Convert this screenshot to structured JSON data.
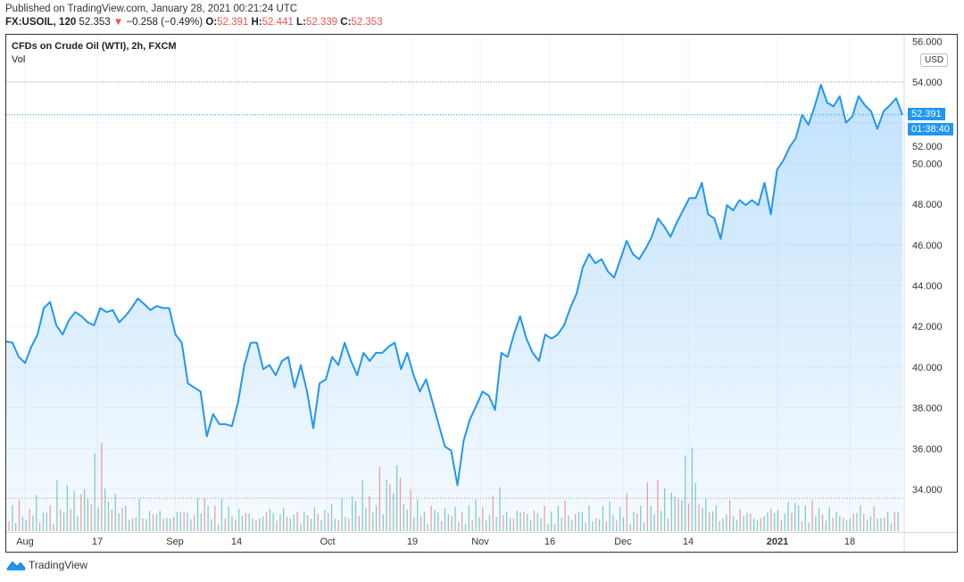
{
  "header": {
    "published": "Published on TradingView.com, January 28, 2021 00:21:24 UTC",
    "symbol": "FX:USOIL, 120",
    "last": "52.353",
    "change": "−0.258 (−0.49%)",
    "o_label": "O:",
    "o": "52.391",
    "h_label": "H:",
    "h": "52.441",
    "l_label": "L:",
    "l": "52.339",
    "c_label": "C:",
    "c": "52.353"
  },
  "legend": {
    "title": "CFDs on Crude Oil (WTI), 2h, FXCM",
    "vol": "Vol"
  },
  "axis": {
    "currency": "USD",
    "price_tag": "52.391",
    "countdown": "01:38:40"
  },
  "footer": {
    "brand": "TradingView"
  },
  "colors": {
    "line": "#2196f3",
    "vol_up": "#26a69a",
    "vol_down": "#ef5350",
    "down_arrow": "#ef5350"
  },
  "chart_data": {
    "type": "area",
    "title": "CFDs on Crude Oil (WTI), 2h, FXCM",
    "x_range": [
      "Jul 31 2020",
      "Jan 27 2021"
    ],
    "x_ticks": [
      "Aug",
      "17",
      "Sep",
      "14",
      "Oct",
      "19",
      "Nov",
      "16",
      "Dec",
      "14",
      "2021",
      "18"
    ],
    "y_ticks": [
      "34.000",
      "36.000",
      "38.000",
      "40.000",
      "42.000",
      "44.000",
      "46.000",
      "48.000",
      "50.000",
      "52.000",
      "54.000",
      "56.000"
    ],
    "ylim": [
      33,
      56.2
    ],
    "grid": true,
    "reference_lines": [
      54.0,
      52.391
    ],
    "series": [
      {
        "values": [
          41.26,
          41.2,
          40.5,
          40.2,
          41.0,
          41.6,
          42.9,
          43.2,
          42.05,
          41.6,
          42.3,
          42.7,
          42.5,
          42.2,
          42.05,
          42.9,
          42.7,
          42.8,
          42.2,
          42.5,
          42.9,
          43.37,
          43.1,
          42.8,
          43.0,
          42.9,
          42.9,
          41.6,
          41.2,
          39.2,
          39.0,
          38.8,
          36.6,
          37.7,
          37.2,
          37.2,
          37.1,
          38.3,
          40.1,
          41.2,
          41.2,
          39.9,
          40.1,
          39.6,
          40.3,
          40.5,
          39.0,
          40.1,
          38.8,
          37.0,
          39.2,
          39.4,
          40.5,
          40.1,
          41.2,
          40.3,
          39.6,
          40.7,
          40.3,
          40.7,
          40.7,
          41.0,
          41.2,
          39.9,
          40.7,
          39.6,
          38.8,
          39.4,
          38.3,
          37.2,
          36.1,
          35.9,
          34.2,
          36.4,
          37.45,
          38.1,
          38.8,
          38.6,
          37.9,
          40.7,
          40.5,
          41.6,
          42.5,
          41.4,
          40.7,
          40.3,
          41.6,
          41.4,
          41.6,
          42.05,
          42.9,
          43.6,
          44.9,
          45.55,
          45.1,
          45.3,
          44.7,
          44.4,
          45.3,
          46.2,
          45.55,
          45.3,
          45.8,
          46.4,
          47.3,
          46.9,
          46.4,
          47.1,
          47.7,
          48.3,
          48.3,
          49.05,
          47.5,
          47.3,
          46.3,
          47.95,
          47.7,
          48.2,
          47.95,
          48.2,
          47.95,
          49.05,
          47.5,
          49.7,
          50.15,
          50.8,
          51.25,
          52.4,
          51.9,
          52.8,
          53.87,
          52.99,
          52.8,
          53.3,
          52.0,
          52.3,
          53.3,
          52.86,
          52.56,
          51.7,
          52.56,
          52.86,
          53.2,
          52.39
        ]
      }
    ],
    "volume": [
      3,
      4,
      2,
      5,
      3,
      2,
      4,
      3,
      6,
      2,
      3,
      5,
      4,
      2,
      8,
      5,
      3,
      9,
      4,
      7,
      3,
      6,
      10,
      5,
      8,
      12,
      6,
      14,
      9,
      5,
      4,
      7,
      3,
      5,
      4,
      3,
      2,
      4,
      5,
      3,
      2,
      4,
      3,
      3,
      4,
      2,
      3,
      2,
      4,
      3,
      5,
      3,
      4,
      2,
      3,
      6,
      3,
      7,
      4,
      3,
      4,
      2,
      5,
      3,
      4,
      3,
      2,
      4,
      3,
      3,
      4,
      2,
      3,
      2,
      4,
      3,
      5,
      3,
      2,
      3,
      4,
      3,
      2,
      4,
      3,
      2
    ]
  }
}
